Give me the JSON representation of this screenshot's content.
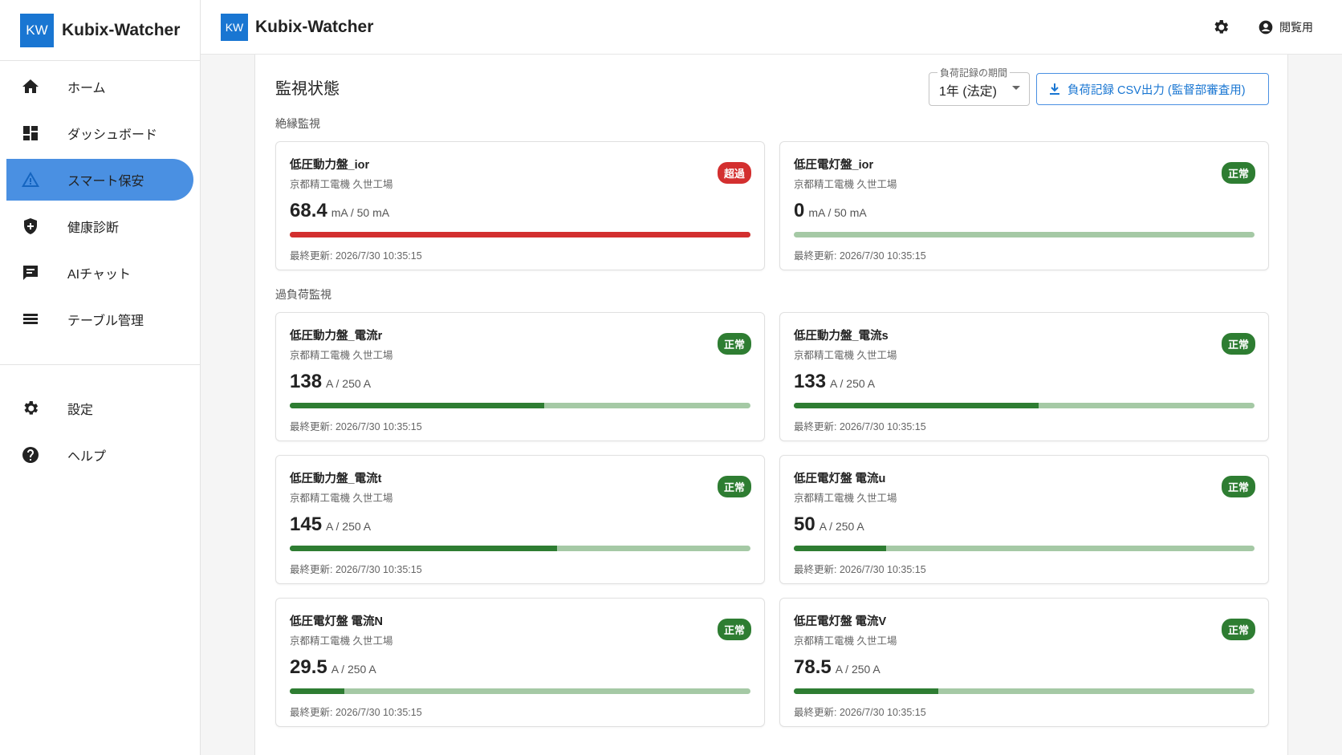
{
  "sidebar": {
    "brand_logo": "KW",
    "brand_name": "Kubix-Watcher",
    "nav": [
      {
        "label": "ホーム"
      },
      {
        "label": "ダッシュボード"
      },
      {
        "label": "スマート保安",
        "selected": true
      },
      {
        "label": "健康診断"
      },
      {
        "label": "AIチャット"
      },
      {
        "label": "テーブル管理"
      }
    ],
    "nav_secondary": [
      {
        "label": "設定"
      },
      {
        "label": "ヘルプ"
      }
    ]
  },
  "header": {
    "logo": "KW",
    "title": "Kubix-Watcher",
    "user": "閲覧用"
  },
  "panel": {
    "title": "監視状態",
    "period_label": "負荷記録の期間",
    "period_value": "1年 (法定)",
    "export_button": "負荷記録 CSV出力 (監督部審査用)",
    "groups": [
      {
        "title": "絶縁監視",
        "cards": [
          {
            "name": "低圧動力盤_ior",
            "location": "京都精工電機 久世工場",
            "value": 68.4,
            "unit": "mA / 50 mA",
            "max": 50,
            "status": "超過",
            "color": "#d32f2f",
            "updated": "最終更新: 2026/7/30 10:35:15"
          },
          {
            "name": "低圧電灯盤_ior",
            "location": "京都精工電機 久世工場",
            "value": 0,
            "unit": "mA / 50 mA",
            "max": 50,
            "status": "正常",
            "color": "#2e7d32",
            "updated": "最終更新: 2026/7/30 10:35:15"
          }
        ]
      },
      {
        "title": "過負荷監視",
        "cards": [
          {
            "name": "低圧動力盤_電流r",
            "location": "京都精工電機 久世工場",
            "value": 138,
            "unit": "A / 250 A",
            "max": 250,
            "status": "正常",
            "color": "#2e7d32",
            "updated": "最終更新: 2026/7/30 10:35:15"
          },
          {
            "name": "低圧動力盤_電流s",
            "location": "京都精工電機 久世工場",
            "value": 133,
            "unit": "A / 250 A",
            "max": 250,
            "status": "正常",
            "color": "#2e7d32",
            "updated": "最終更新: 2026/7/30 10:35:15"
          },
          {
            "name": "低圧動力盤_電流t",
            "location": "京都精工電機 久世工場",
            "value": 145,
            "unit": "A / 250 A",
            "max": 250,
            "status": "正常",
            "color": "#2e7d32",
            "updated": "最終更新: 2026/7/30 10:35:15"
          },
          {
            "name": "低圧電灯盤 電流u",
            "location": "京都精工電機 久世工場",
            "value": 50,
            "unit": "A / 250 A",
            "max": 250,
            "status": "正常",
            "color": "#2e7d32",
            "updated": "最終更新: 2026/7/30 10:35:15"
          },
          {
            "name": "低圧電灯盤 電流N",
            "location": "京都精工電機 久世工場",
            "value": 29.5,
            "unit": "A / 250 A",
            "max": 250,
            "status": "正常",
            "color": "#2e7d32",
            "updated": "最終更新: 2026/7/30 10:35:15"
          },
          {
            "name": "低圧電灯盤 電流V",
            "location": "京都精工電機 久世工場",
            "value": 78.5,
            "unit": "A / 250 A",
            "max": 250,
            "status": "正常",
            "color": "#2e7d32",
            "updated": "最終更新: 2026/7/30 10:35:15"
          }
        ]
      }
    ]
  }
}
